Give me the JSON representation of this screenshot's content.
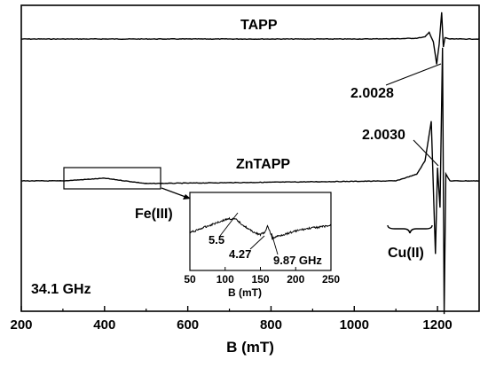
{
  "chart_data": {
    "type": "line",
    "xlabel": "B (mT)",
    "ylabel": "",
    "xlim": [
      200,
      1300
    ],
    "xticks": [
      200,
      400,
      600,
      800,
      1000,
      1200
    ],
    "yticks": [],
    "grid": false,
    "series": [
      {
        "name": "TAPP",
        "points": [
          [
            200,
            0
          ],
          [
            1000,
            0
          ],
          [
            1100,
            0.01
          ],
          [
            1150,
            0.03
          ],
          [
            1170,
            0.08
          ],
          [
            1180,
            0.25
          ],
          [
            1190,
            -0.1
          ],
          [
            1198,
            -0.95
          ],
          [
            1204,
            -0.2
          ],
          [
            1210,
            1.0
          ],
          [
            1214,
            -0.3
          ],
          [
            1218,
            0.05
          ],
          [
            1230,
            0
          ],
          [
            1300,
            0
          ]
        ]
      },
      {
        "name": "ZnTAPP",
        "points": [
          [
            200,
            0
          ],
          [
            300,
            0
          ],
          [
            400,
            0.02
          ],
          [
            500,
            -0.02
          ],
          [
            1100,
            0
          ],
          [
            1150,
            0.05
          ],
          [
            1170,
            0.15
          ],
          [
            1185,
            0.45
          ],
          [
            1195,
            -0.55
          ],
          [
            1200,
            0.1
          ],
          [
            1206,
            -0.2
          ],
          [
            1212,
            1.0
          ],
          [
            1216,
            -1.0
          ],
          [
            1220,
            0.05
          ],
          [
            1230,
            0
          ],
          [
            1300,
            0
          ]
        ]
      }
    ],
    "annotations": {
      "g_tapp": "2.0028",
      "g_zntapp": "2.0030",
      "fe": "Fe(III)",
      "cu": "Cu(II)",
      "freq": "34.1 GHz"
    },
    "inset": {
      "type": "line",
      "xlabel": "B (mT)",
      "xlim": [
        50,
        250
      ],
      "xticks": [
        50,
        100,
        150,
        200,
        250
      ],
      "series": [
        {
          "name": "",
          "points": [
            [
              50,
              -0.15
            ],
            [
              70,
              0.05
            ],
            [
              90,
              0.25
            ],
            [
              105,
              0.38
            ],
            [
              115,
              0.35
            ],
            [
              125,
              0.15
            ],
            [
              135,
              -0.05
            ],
            [
              145,
              -0.18
            ],
            [
              150,
              -0.22
            ],
            [
              157,
              -0.12
            ],
            [
              160,
              0.08
            ],
            [
              163,
              -0.05
            ],
            [
              167,
              -0.38
            ],
            [
              172,
              -0.3
            ],
            [
              185,
              -0.2
            ],
            [
              200,
              -0.08
            ],
            [
              220,
              0.02
            ],
            [
              250,
              0.12
            ]
          ]
        }
      ],
      "annotations": [
        "5.5",
        "4.27",
        "9.87 GHz"
      ]
    }
  }
}
